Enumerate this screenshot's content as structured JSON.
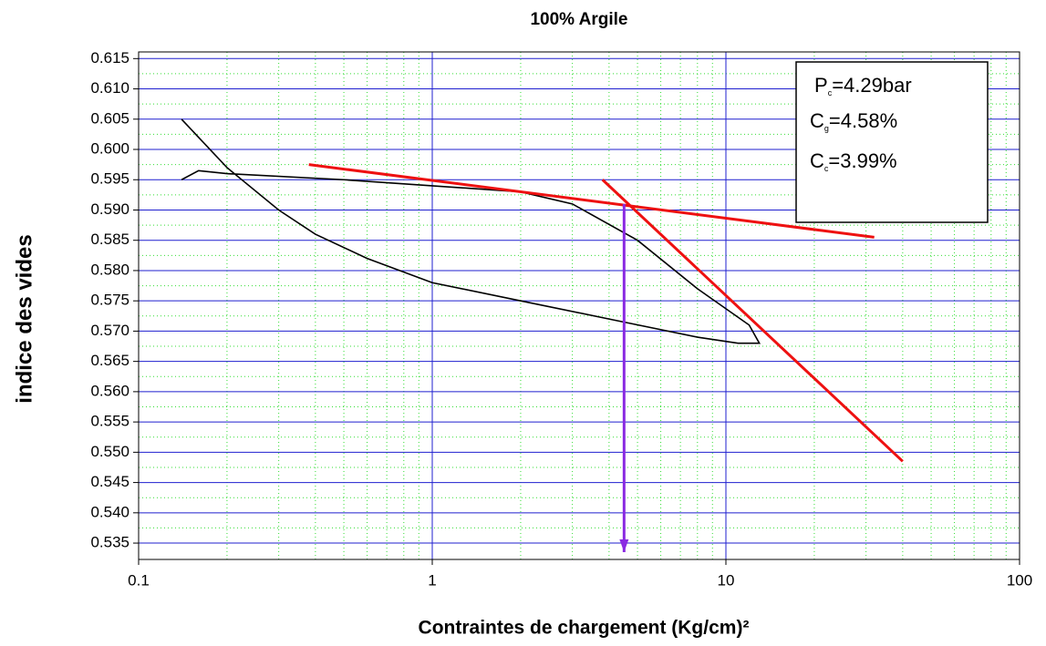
{
  "chart_data": {
    "type": "line",
    "title": "100% Argile",
    "x_label": "Contraintes de chargement (Kg/cm)²",
    "y_label": "indice des vides",
    "log_x": true,
    "grid": true,
    "xlim": [
      0.1,
      100
    ],
    "ylim": [
      0.5323,
      0.6161
    ],
    "xticks": [
      0.1,
      1,
      10,
      100
    ],
    "yticks": [
      0.615,
      {
        "value": 0.61,
        "label": "0.610"
      },
      0.605,
      {
        "value": 0.6,
        "label": "0.600"
      },
      0.595,
      {
        "value": 0.59,
        "label": "0.590"
      },
      0.585,
      {
        "value": 0.58,
        "label": "0.580"
      },
      0.575,
      {
        "value": 0.57,
        "label": "0.570"
      },
      0.565,
      {
        "value": 0.56,
        "label": "0.560"
      },
      0.555,
      {
        "value": 0.55,
        "label": "0.550"
      },
      0.545,
      {
        "value": 0.54,
        "label": "0.540"
      },
      0.535
    ],
    "xminorticks": [
      0.2,
      0.3,
      0.4,
      0.5,
      0.6,
      0.7,
      0.8,
      0.9,
      2,
      3,
      4,
      5,
      6,
      7,
      8,
      9,
      20,
      30,
      40,
      50,
      60,
      70,
      80,
      90
    ],
    "yminorticks": [
      0.6125,
      0.6075,
      0.6025,
      0.5975,
      0.5925,
      0.5875,
      0.5825,
      0.5775,
      0.5725,
      0.5675,
      0.5625,
      0.5575,
      0.5525,
      0.5475,
      0.5425,
      0.5375
    ],
    "major_grid_color": "#1f1fcf",
    "minor_grid_color": "#33dd33",
    "series": [
      {
        "color": "#000000",
        "x": [
          0.14,
          0.2,
          0.3,
          0.4,
          0.6,
          1,
          2,
          4,
          8,
          11,
          13,
          12,
          8,
          5,
          3,
          2,
          1,
          0.5,
          0.2,
          0.16,
          0.14
        ],
        "values": [
          0.605,
          0.597,
          0.59,
          0.586,
          0.582,
          0.578,
          0.575,
          0.572,
          0.569,
          0.568,
          0.568,
          0.571,
          0.577,
          0.585,
          0.591,
          0.593,
          0.594,
          0.595,
          0.596,
          0.5965,
          0.595
        ]
      },
      {
        "color": "#ee1111",
        "x": [
          0.38,
          32
        ],
        "values": [
          0.5975,
          0.5855
        ]
      },
      {
        "color": "#ee1111",
        "x": [
          3.8,
          40
        ],
        "values": [
          0.595,
          0.5485
        ]
      },
      {
        "color": "#8a2be2",
        "arrow": true,
        "x": [
          4.5,
          4.5
        ],
        "values": [
          0.591,
          0.5335
        ]
      }
    ],
    "annotations": [
      {
        "symbol": "P",
        "sub": "c",
        "text": "=4.29bar"
      },
      {
        "symbol": "C",
        "sub": "g",
        "text": "=4.58%"
      },
      {
        "symbol": "C",
        "sub": "c",
        "text": "=3.99%"
      }
    ]
  }
}
